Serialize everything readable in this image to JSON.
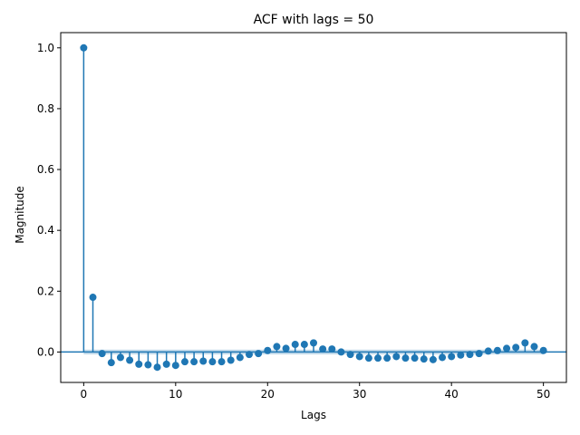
{
  "chart_data": {
    "type": "stem",
    "title": "ACF with lags = 50",
    "xlabel": "Lags",
    "ylabel": "Magnitude",
    "xlim": [
      -2.5,
      52.5
    ],
    "ylim": [
      -0.1,
      1.05
    ],
    "xticks": [
      0,
      10,
      20,
      30,
      40,
      50
    ],
    "yticks": [
      0.0,
      0.2,
      0.4,
      0.6,
      0.8,
      1.0
    ],
    "ytick_labels": [
      "0.0",
      "0.2",
      "0.4",
      "0.6",
      "0.8",
      "1.0"
    ],
    "grid": false,
    "color": "#1f77b4",
    "confidence_band": 0.008,
    "lags": [
      0,
      1,
      2,
      3,
      4,
      5,
      6,
      7,
      8,
      9,
      10,
      11,
      12,
      13,
      14,
      15,
      16,
      17,
      18,
      19,
      20,
      21,
      22,
      23,
      24,
      25,
      26,
      27,
      28,
      29,
      30,
      31,
      32,
      33,
      34,
      35,
      36,
      37,
      38,
      39,
      40,
      41,
      42,
      43,
      44,
      45,
      46,
      47,
      48,
      49,
      50
    ],
    "values": [
      1.0,
      0.18,
      -0.005,
      -0.035,
      -0.018,
      -0.027,
      -0.04,
      -0.042,
      -0.05,
      -0.04,
      -0.044,
      -0.032,
      -0.032,
      -0.03,
      -0.032,
      -0.032,
      -0.027,
      -0.018,
      -0.008,
      -0.005,
      0.005,
      0.018,
      0.012,
      0.025,
      0.025,
      0.03,
      0.01,
      0.01,
      0.0,
      -0.008,
      -0.015,
      -0.02,
      -0.02,
      -0.02,
      -0.015,
      -0.02,
      -0.02,
      -0.023,
      -0.025,
      -0.018,
      -0.015,
      -0.01,
      -0.008,
      -0.005,
      0.003,
      0.005,
      0.012,
      0.015,
      0.03,
      0.018,
      0.005
    ]
  }
}
